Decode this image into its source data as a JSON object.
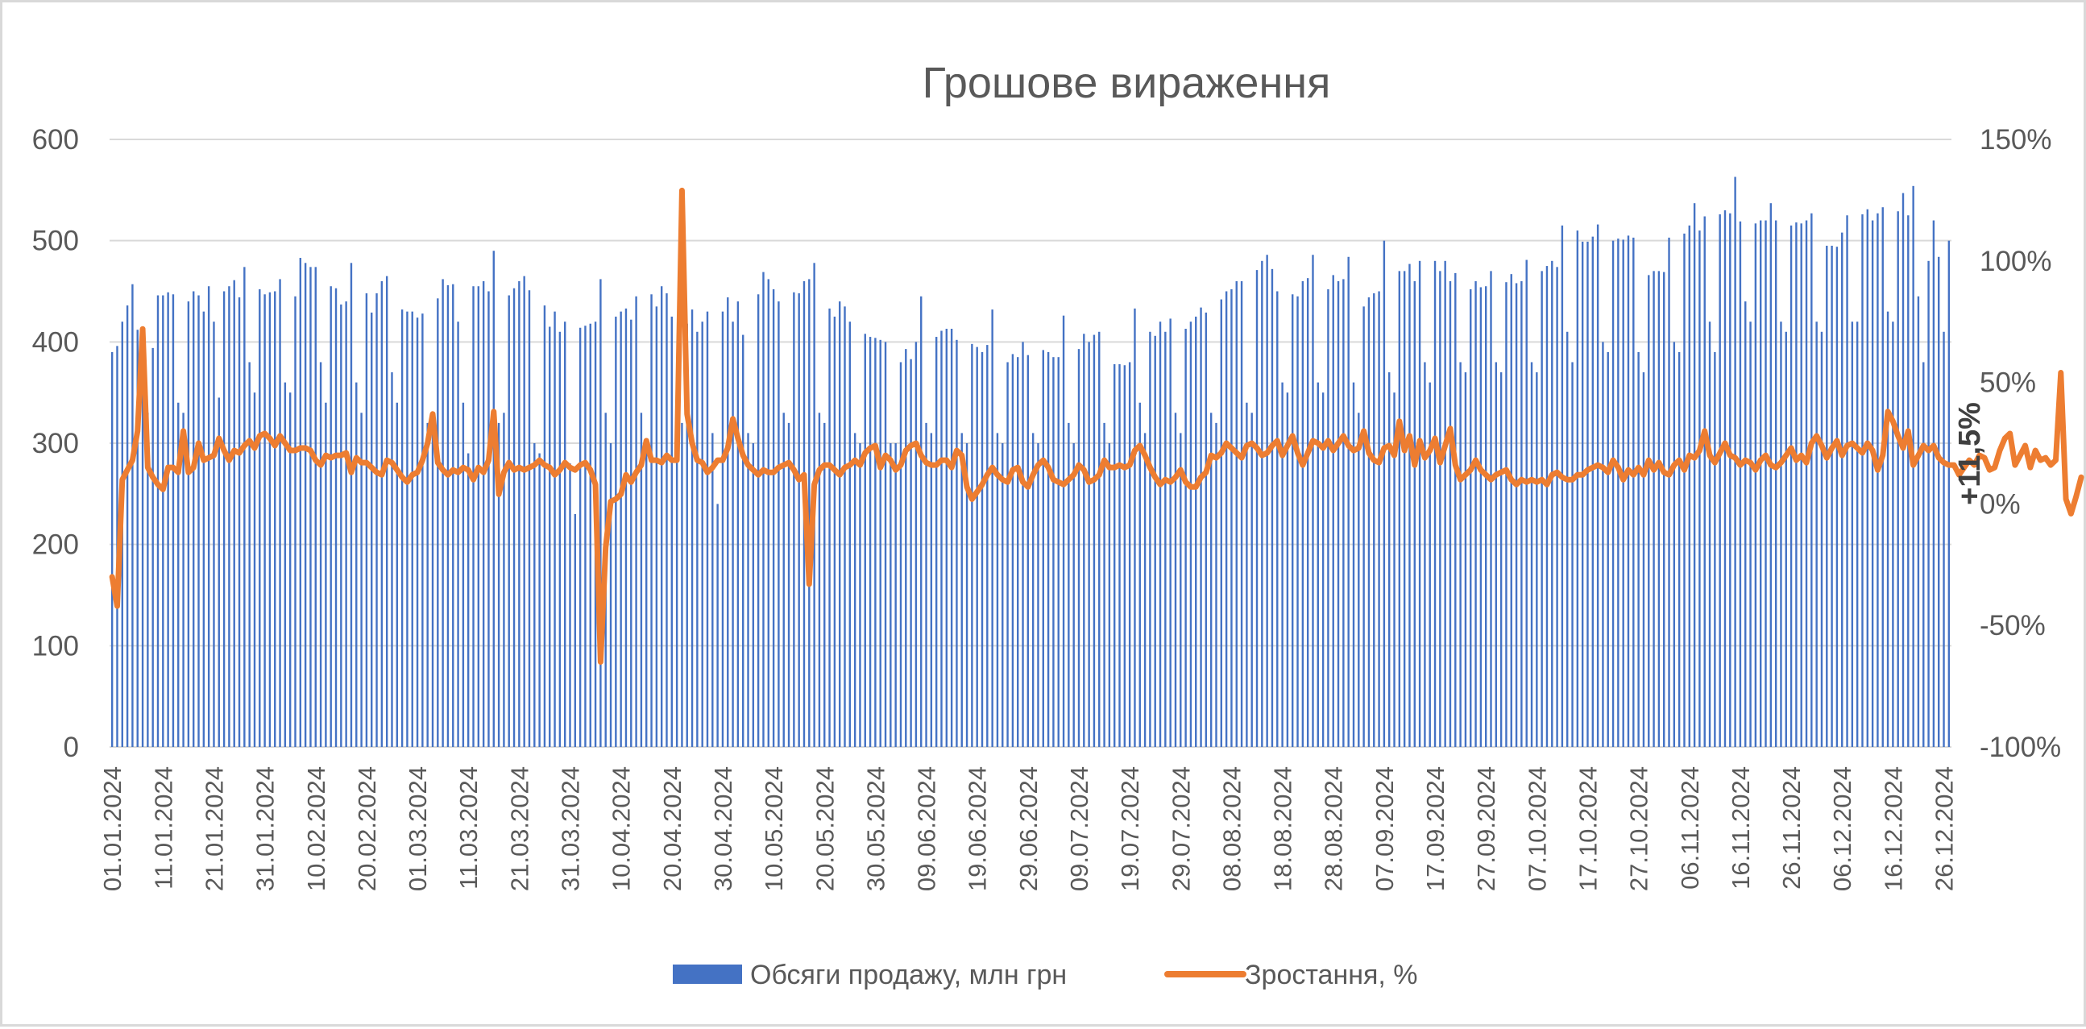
{
  "colors": {
    "bars": "#4472c4",
    "line": "#ed7d31",
    "grid": "#d9d9d9",
    "text": "#595959",
    "annotation": "#404040"
  },
  "chart_data": {
    "type": "bar",
    "title": "Грошове вираження",
    "xlabel": "",
    "ylabel": "",
    "y2label": "",
    "grid": true,
    "legend_position": "bottom",
    "start_date": "01.01.2024",
    "ylim": [
      0,
      600
    ],
    "y2lim": [
      -100,
      150
    ],
    "y_ticks": [
      "0",
      "100",
      "200",
      "300",
      "400",
      "500",
      "600"
    ],
    "y2_ticks": [
      "-100%",
      "-50%",
      "0%",
      "50%",
      "100%",
      "150%"
    ],
    "x_tick_labels": [
      "01.01.2024",
      "11.01.2024",
      "21.01.2024",
      "31.01.2024",
      "10.02.2024",
      "20.02.2024",
      "01.03.2024",
      "11.03.2024",
      "21.03.2024",
      "31.03.2024",
      "10.04.2024",
      "20.04.2024",
      "30.04.2024",
      "10.05.2024",
      "20.05.2024",
      "30.05.2024",
      "09.06.2024",
      "19.06.2024",
      "29.06.2024",
      "09.07.2024",
      "19.07.2024",
      "29.07.2024",
      "08.08.2024",
      "18.08.2024",
      "28.08.2024",
      "07.09.2024",
      "17.09.2024",
      "27.09.2024",
      "07.10.2024",
      "17.10.2024",
      "27.10.2024",
      "06.11.2024",
      "16.11.2024",
      "26.11.2024",
      "06.12.2024",
      "16.12.2024",
      "26.12.2024"
    ],
    "annotation": "+11,5%",
    "series": [
      {
        "name": "Обсяги продажу, млн грн",
        "type": "bar",
        "axis": "left",
        "values": [
          390,
          396,
          420,
          436,
          457,
          412,
          372,
          330,
          394,
          446,
          446,
          449,
          447,
          340,
          330,
          440,
          450,
          446,
          430,
          455,
          420,
          345,
          450,
          455,
          461,
          444,
          474,
          380,
          350,
          452,
          447,
          449,
          450,
          462,
          360,
          350,
          445,
          483,
          478,
          474,
          474,
          380,
          340,
          455,
          453,
          437,
          440,
          478,
          360,
          330,
          448,
          429,
          448,
          460,
          465,
          370,
          340,
          432,
          430,
          430,
          424,
          428,
          320,
          330,
          443,
          462,
          456,
          457,
          420,
          340,
          290,
          455,
          455,
          460,
          450,
          490,
          320,
          330,
          446,
          453,
          460,
          465,
          451,
          300,
          290,
          436,
          415,
          430,
          410,
          420,
          280,
          230,
          414,
          416,
          418,
          420,
          462,
          330,
          300,
          425,
          430,
          433,
          422,
          445,
          330,
          300,
          447,
          435,
          455,
          448,
          425,
          330,
          320,
          418,
          432,
          410,
          420,
          430,
          310,
          240,
          430,
          444,
          420,
          440,
          407,
          310,
          300,
          447,
          469,
          462,
          452,
          440,
          330,
          320,
          449,
          448,
          460,
          462,
          478,
          330,
          320,
          433,
          425,
          440,
          435,
          420,
          310,
          300,
          408,
          405,
          404,
          402,
          400,
          300,
          300,
          380,
          393,
          383,
          400,
          445,
          320,
          310,
          405,
          411,
          413,
          413,
          402,
          310,
          300,
          398,
          395,
          390,
          397,
          432,
          310,
          300,
          380,
          388,
          385,
          400,
          387,
          310,
          300,
          392,
          390,
          385,
          385,
          426,
          320,
          300,
          393,
          408,
          400,
          407,
          410,
          320,
          300,
          378,
          378,
          377,
          380,
          433,
          340,
          310,
          410,
          406,
          420,
          410,
          423,
          330,
          310,
          413,
          420,
          425,
          434,
          429,
          330,
          320,
          442,
          450,
          452,
          460,
          460,
          340,
          330,
          471,
          480,
          486,
          472,
          450,
          360,
          350,
          447,
          445,
          460,
          463,
          486,
          360,
          350,
          452,
          466,
          460,
          462,
          484,
          360,
          330,
          435,
          444,
          448,
          450,
          500,
          370,
          350,
          470,
          470,
          477,
          460,
          480,
          380,
          360,
          480,
          470,
          480,
          460,
          468,
          380,
          370,
          452,
          460,
          454,
          455,
          470,
          380,
          370,
          459,
          467,
          458,
          460,
          481,
          380,
          370,
          470,
          475,
          480,
          474,
          515,
          410,
          380,
          510,
          499,
          499,
          504,
          516,
          400,
          390,
          500,
          502,
          501,
          505,
          503,
          390,
          370,
          466,
          470,
          470,
          469,
          503,
          400,
          390,
          507,
          515,
          537,
          510,
          524,
          420,
          390,
          526,
          530,
          527,
          563,
          519,
          440,
          420,
          517,
          520,
          520,
          537,
          520,
          420,
          410,
          515,
          518,
          517,
          520,
          527,
          420,
          410,
          495,
          495,
          494,
          508,
          525,
          420,
          420,
          526,
          531,
          520,
          527,
          533,
          430,
          420,
          529,
          547,
          525,
          554,
          445,
          380,
          480,
          520,
          484,
          410,
          500
        ]
      },
      {
        "name": "Зростання, %",
        "type": "line",
        "axis": "right",
        "values": [
          -30,
          -42,
          10,
          14,
          18,
          30,
          72,
          15,
          11,
          8,
          6,
          15,
          15,
          13,
          30,
          13,
          15,
          25,
          18,
          19,
          20,
          27,
          22,
          18,
          22,
          21,
          24,
          26,
          23,
          28,
          29,
          27,
          24,
          28,
          25,
          22,
          22,
          23,
          23,
          22,
          18,
          16,
          20,
          19,
          20,
          20,
          21,
          13,
          19,
          17,
          17,
          15,
          13,
          12,
          18,
          17,
          14,
          11,
          9,
          12,
          13,
          18,
          25,
          37,
          17,
          14,
          12,
          14,
          13,
          15,
          14,
          10,
          15,
          13,
          18,
          38,
          4,
          13,
          17,
          14,
          15,
          14,
          15,
          16,
          18,
          16,
          15,
          12,
          14,
          17,
          15,
          14,
          16,
          17,
          14,
          8,
          -65,
          -18,
          1,
          2,
          4,
          12,
          9,
          13,
          16,
          26,
          18,
          18,
          17,
          20,
          18,
          18,
          129,
          37,
          25,
          18,
          17,
          13,
          15,
          18,
          18,
          23,
          35,
          27,
          20,
          16,
          14,
          12,
          14,
          13,
          13,
          15,
          16,
          17,
          14,
          10,
          12,
          -33,
          8,
          14,
          16,
          16,
          14,
          12,
          15,
          16,
          18,
          16,
          21,
          23,
          24,
          15,
          20,
          18,
          14,
          16,
          22,
          24,
          25,
          20,
          17,
          16,
          16,
          18,
          18,
          15,
          22,
          20,
          7,
          2,
          5,
          8,
          12,
          15,
          12,
          10,
          9,
          14,
          15,
          9,
          7,
          12,
          16,
          18,
          15,
          10,
          9,
          8,
          10,
          12,
          16,
          14,
          9,
          10,
          12,
          18,
          15,
          15,
          16,
          15,
          16,
          22,
          24,
          20,
          15,
          11,
          8,
          10,
          9,
          11,
          14,
          9,
          7,
          7,
          11,
          13,
          20,
          19,
          21,
          25,
          23,
          21,
          19,
          24,
          25,
          23,
          20,
          21,
          24,
          26,
          20,
          24,
          28,
          21,
          16,
          21,
          26,
          25,
          23,
          26,
          22,
          25,
          28,
          24,
          22,
          23,
          30,
          21,
          18,
          17,
          23,
          24,
          20,
          34,
          22,
          28,
          16,
          26,
          19,
          22,
          27,
          17,
          24,
          31,
          16,
          10,
          12,
          14,
          18,
          14,
          12,
          10,
          12,
          13,
          14,
          10,
          8,
          10,
          9,
          10,
          9,
          10,
          8,
          12,
          13,
          11,
          10,
          10,
          12,
          12,
          14,
          15,
          16,
          15,
          13,
          18,
          15,
          10,
          14,
          12,
          15,
          12,
          18,
          14,
          17,
          13,
          12,
          16,
          18,
          14,
          20,
          19,
          22,
          30,
          20,
          17,
          21,
          25,
          20,
          19,
          16,
          18,
          17,
          14,
          18,
          20,
          16,
          15,
          17,
          20,
          23,
          18,
          20,
          17,
          25,
          28,
          24,
          19,
          23,
          26,
          20,
          24,
          25,
          23,
          21,
          25,
          22,
          14,
          20,
          38,
          34,
          28,
          23,
          30,
          16,
          20,
          24,
          22,
          24,
          19,
          17,
          16,
          16,
          12,
          15,
          18,
          16,
          20,
          19,
          14,
          15,
          22,
          27,
          29,
          16,
          20,
          24,
          15,
          22,
          18,
          19,
          16,
          18,
          54,
          2,
          -4,
          3,
          11
        ]
      }
    ]
  }
}
